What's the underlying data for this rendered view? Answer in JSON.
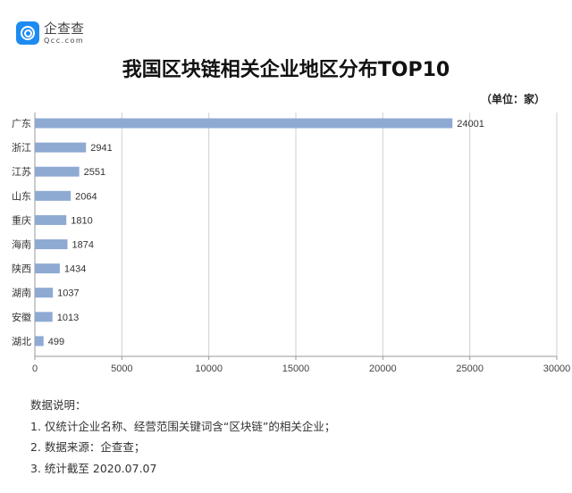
{
  "brand": {
    "name": "企查查",
    "domain": "Qcc.com",
    "color": "#1d8bf0"
  },
  "chart_data": {
    "type": "bar",
    "orientation": "horizontal",
    "title": "我国区块链相关企业地区分布TOP10",
    "unit": "（单位：家）",
    "categories": [
      "广东",
      "浙江",
      "江苏",
      "山东",
      "重庆",
      "海南",
      "陕西",
      "湖南",
      "安徽",
      "湖北"
    ],
    "values": [
      24001,
      2941,
      2551,
      2064,
      1810,
      1874,
      1434,
      1037,
      1013,
      499
    ],
    "xlim": [
      0,
      30000
    ],
    "xticks": [
      0,
      5000,
      10000,
      15000,
      20000,
      25000,
      30000
    ],
    "grid": true,
    "bar_color": "#8eaad3"
  },
  "notes": {
    "heading": "数据说明：",
    "items": [
      "1. 仅统计企业名称、经营范围关键词含“区块链”的相关企业；",
      "2. 数据来源：企查查；",
      "3. 统计截至 2020.07.07"
    ]
  }
}
